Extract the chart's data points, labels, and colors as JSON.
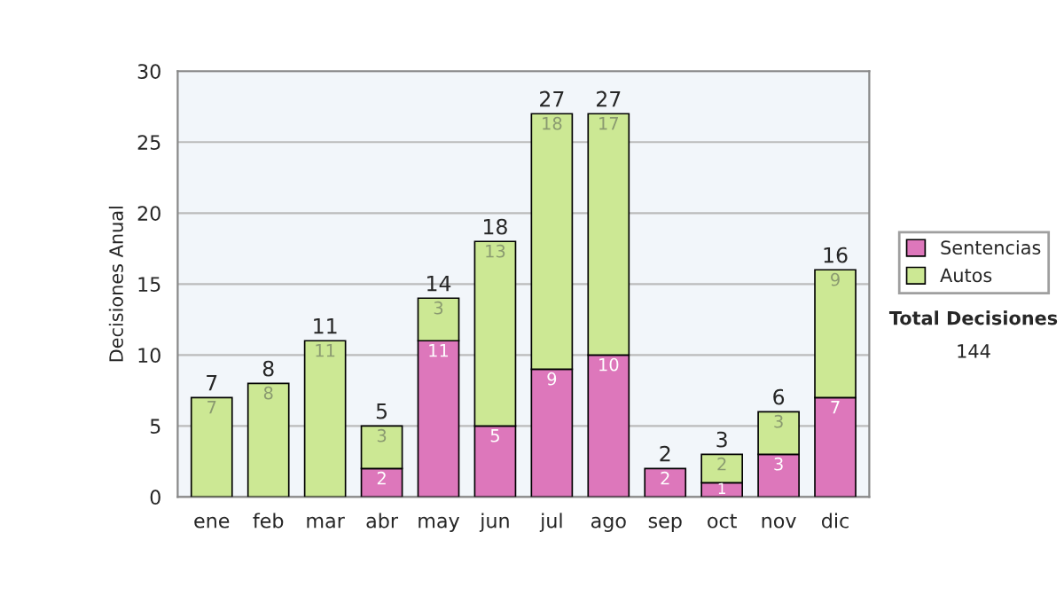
{
  "chart_data": {
    "type": "bar",
    "stacked": true,
    "ylabel": "Decisiones Anual",
    "categories": [
      "ene",
      "feb",
      "mar",
      "abr",
      "may",
      "jun",
      "jul",
      "ago",
      "sep",
      "oct",
      "nov",
      "dic"
    ],
    "series": [
      {
        "name": "Sentencias",
        "color": "#dd77bb",
        "values": [
          0,
          0,
          0,
          2,
          11,
          5,
          9,
          10,
          2,
          1,
          3,
          7
        ],
        "value_labels": [
          null,
          null,
          null,
          "2",
          "11",
          "5",
          "9",
          "10",
          "2",
          "1",
          "3",
          "7"
        ]
      },
      {
        "name": "Autos",
        "color": "#cce894",
        "values": [
          7,
          8,
          11,
          3,
          3,
          13,
          18,
          17,
          0,
          2,
          3,
          9
        ],
        "value_labels": [
          "7",
          "8",
          "11",
          "3",
          "3",
          "13",
          "18",
          "17",
          null,
          "2",
          "3",
          "9"
        ]
      }
    ],
    "totals": [
      "7",
      "8",
      "11",
      "5",
      "14",
      "18",
      "27",
      "27",
      "2",
      "3",
      "6",
      "16"
    ],
    "ylim": [
      0,
      30
    ],
    "yticks": [
      0,
      5,
      10,
      15,
      20,
      25,
      30
    ],
    "grid": "y",
    "legend": "right",
    "annotations": [
      "Total Decisiones",
      "144"
    ]
  }
}
